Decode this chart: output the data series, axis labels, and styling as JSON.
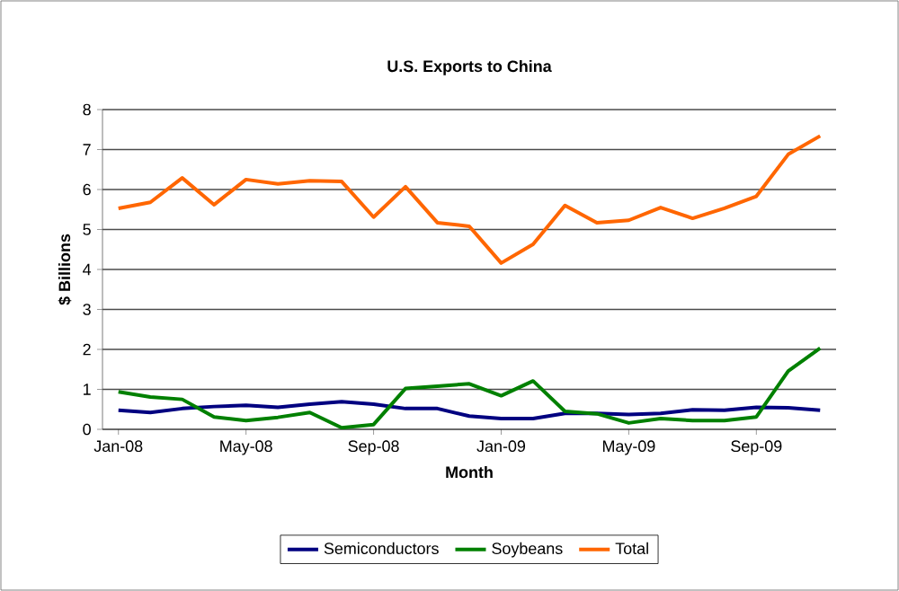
{
  "chart_data": {
    "type": "line",
    "title": "U.S. Exports to China",
    "xlabel": "Month",
    "ylabel": "$ Billions",
    "categories": [
      "Jan-08",
      null,
      null,
      null,
      "May-08",
      null,
      null,
      null,
      "Sep-08",
      null,
      null,
      null,
      "Jan-09",
      null,
      null,
      null,
      "May-09",
      null,
      null,
      null,
      "Sep-09",
      null,
      null
    ],
    "series": [
      {
        "name": "Semiconductors",
        "color": "#000080",
        "values": [
          0.48,
          0.42,
          0.52,
          0.57,
          0.6,
          0.55,
          0.63,
          0.69,
          0.63,
          0.52,
          0.52,
          0.33,
          0.27,
          0.27,
          0.4,
          0.4,
          0.37,
          0.4,
          0.49,
          0.48,
          0.55,
          0.54,
          0.48
        ]
      },
      {
        "name": "Soybeans",
        "color": "#008000",
        "values": [
          0.94,
          0.81,
          0.75,
          0.31,
          0.22,
          0.3,
          0.42,
          0.04,
          0.12,
          1.02,
          1.08,
          1.14,
          0.84,
          1.21,
          0.45,
          0.39,
          0.16,
          0.27,
          0.22,
          0.22,
          0.31,
          1.46,
          2.03
        ]
      },
      {
        "name": "Total",
        "color": "#ff6600",
        "values": [
          5.53,
          5.68,
          6.29,
          5.62,
          6.25,
          6.14,
          6.22,
          6.2,
          5.31,
          6.07,
          5.17,
          5.08,
          4.16,
          4.63,
          5.6,
          5.17,
          5.23,
          5.55,
          5.28,
          5.53,
          5.83,
          6.88,
          7.34
        ]
      }
    ],
    "ylim": [
      0,
      8
    ],
    "yticks": [
      0,
      1,
      2,
      3,
      4,
      5,
      6,
      7,
      8
    ],
    "grid": "y",
    "legend": "bottom",
    "marker": "none",
    "line_style": "solid"
  }
}
